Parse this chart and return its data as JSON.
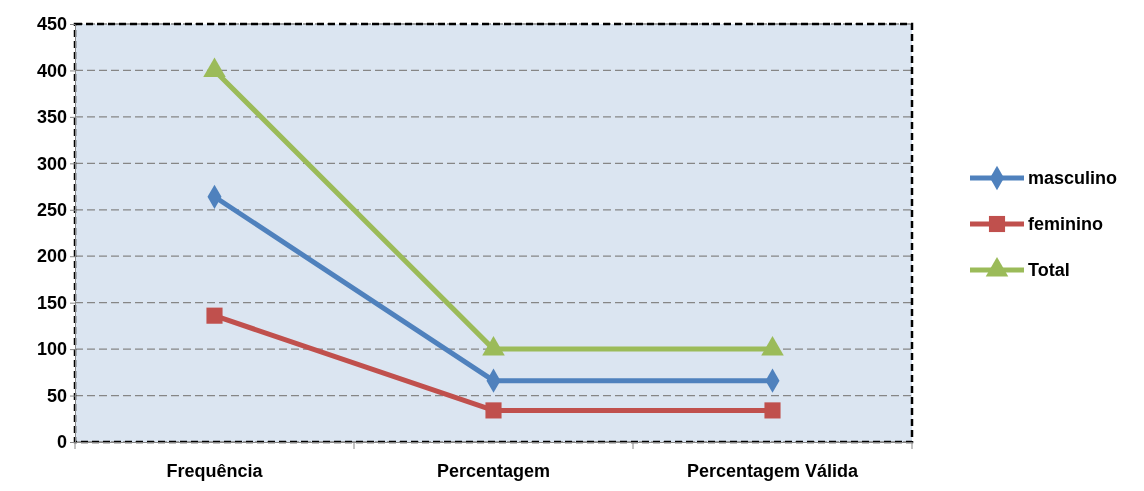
{
  "chart_data": {
    "type": "line",
    "categories": [
      "Frequência",
      "Percentagem",
      "Percentagem Válida"
    ],
    "series": [
      {
        "name": "masculino",
        "color": "#4f81bd",
        "marker": "diamond",
        "values": [
          264,
          66,
          66
        ]
      },
      {
        "name": "feminino",
        "color": "#c0504d",
        "marker": "square",
        "values": [
          136,
          34,
          34
        ]
      },
      {
        "name": "Total",
        "color": "#9bbb59",
        "marker": "triangle",
        "values": [
          400,
          100,
          100
        ]
      }
    ],
    "ylim": [
      0,
      450
    ],
    "yticks": [
      0,
      50,
      100,
      150,
      200,
      250,
      300,
      350,
      400,
      450
    ],
    "grid": "y",
    "legend": "right"
  }
}
